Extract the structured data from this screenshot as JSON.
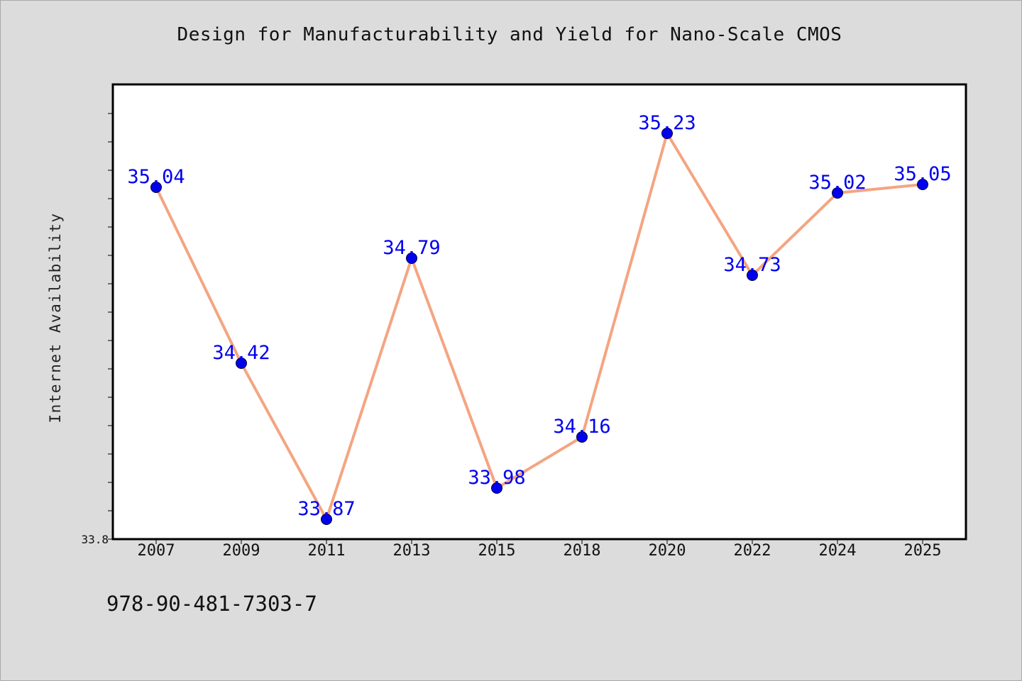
{
  "title": "Design for Manufacturability and Yield for Nano-Scale CMOS",
  "footer_text": "978-90-481-7303-7",
  "colors": {
    "background": "#dcdcdc",
    "plot_background": "#ffffff",
    "line": "#f4a582",
    "marker": "#0000ee",
    "data_label": "#0000ee"
  },
  "chart_data": {
    "type": "line",
    "title": "Design for Manufacturability and Yield for Nano-Scale CMOS",
    "xlabel": "",
    "ylabel": "Internet Availability",
    "categories": [
      "2007",
      "2009",
      "2011",
      "2013",
      "2015",
      "2018",
      "2020",
      "2022",
      "2024",
      "2025"
    ],
    "series": [
      {
        "values": [
          35.04,
          34.42,
          33.87,
          34.79,
          33.98,
          34.16,
          35.23,
          34.73,
          35.02,
          35.05
        ],
        "labels": [
          "35.04",
          "34.42",
          "33.87",
          "34.79",
          "33.98",
          "34.16",
          "35.23",
          "34.73",
          "35.02",
          "35.05"
        ]
      }
    ],
    "ylim": [
      33.8,
      35.4
    ],
    "y_tick_labels": [
      "33.8"
    ],
    "grid": false,
    "legend": "none"
  }
}
